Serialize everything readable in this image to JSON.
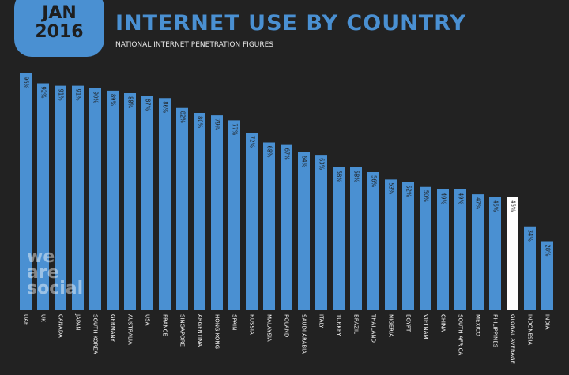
{
  "badge": {
    "month": "JAN",
    "year": "2016"
  },
  "watermark": {
    "line1": "we",
    "line2": "are",
    "line3": "social"
  },
  "colors": {
    "bar": "#4a90d2",
    "highlight": "#ffffff",
    "background": "#222222",
    "label_dark": "#1e1e1e"
  },
  "chart_data": {
    "type": "bar",
    "title": "INTERNET USE BY COUNTRY",
    "subtitle": "NATIONAL INTERNET PENETRATION FIGURES",
    "ylim": [
      0,
      100
    ],
    "grid": false,
    "categories": [
      "UAE",
      "UK",
      "CANADA",
      "JAPAN",
      "SOUTH KOREA",
      "GERMANY",
      "AUSTRALIA",
      "USA",
      "FRANCE",
      "SINGAPORE",
      "ARGENTINA",
      "HONG KONG",
      "SPAIN",
      "RUSSIA",
      "MALAYSIA",
      "POLAND",
      "SAUDI ARABIA",
      "ITALY",
      "TURKEY",
      "BRAZIL",
      "THAILAND",
      "NIGERIA",
      "EGYPT",
      "VIETNAM",
      "CHINA",
      "SOUTH AFRICA",
      "MEXICO",
      "PHILIPPINES",
      "GLOBAL AVERAGE",
      "INDONESIA",
      "INDIA"
    ],
    "values": [
      96,
      92,
      91,
      91,
      90,
      89,
      88,
      87,
      86,
      82,
      80,
      79,
      77,
      72,
      68,
      67,
      64,
      63,
      58,
      58,
      56,
      53,
      52,
      50,
      49,
      49,
      47,
      46,
      46,
      34,
      28
    ],
    "value_labels": [
      "96%",
      "92%",
      "91%",
      "91%",
      "90%",
      "89%",
      "88%",
      "87%",
      "86%",
      "82%",
      "80%",
      "79%",
      "77%",
      "72%",
      "68%",
      "67%",
      "64%",
      "63%",
      "58%",
      "58%",
      "56%",
      "53%",
      "52%",
      "50%",
      "49%",
      "49%",
      "47%",
      "46%",
      "46%",
      "34%",
      "28%"
    ],
    "highlight_category": "GLOBAL AVERAGE"
  }
}
